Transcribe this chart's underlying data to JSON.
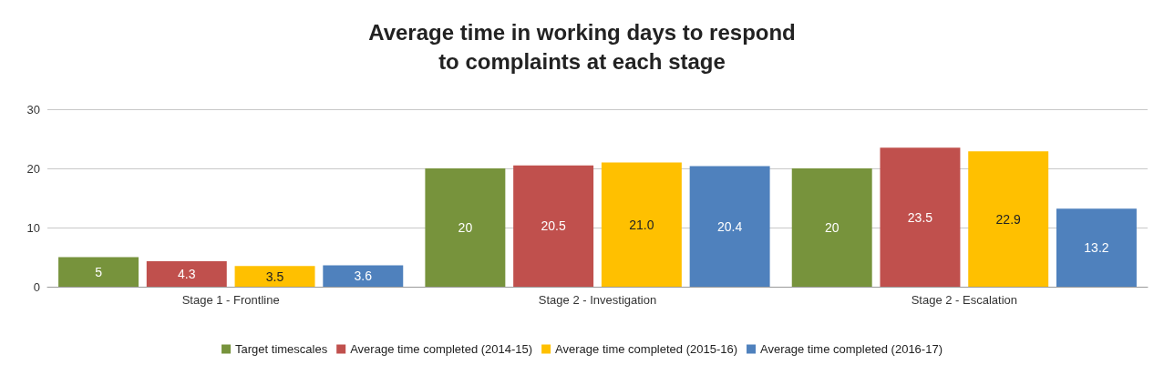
{
  "chart_data": {
    "type": "bar",
    "title": "Average time in working days to respond\nto complaints at each stage",
    "categories": [
      "Stage 1 - Frontline",
      "Stage 2 - Investigation",
      "Stage 2 - Escalation"
    ],
    "series": [
      {
        "name": "Target timescales",
        "color": "#77933c",
        "values": [
          5,
          20,
          20
        ],
        "value_labels": [
          "5",
          "20",
          "20"
        ]
      },
      {
        "name": "Average time completed (2014-15)",
        "color": "#c0504d",
        "values": [
          4.3,
          20.5,
          23.5
        ],
        "value_labels": [
          "4.3",
          "20.5",
          "23.5"
        ]
      },
      {
        "name": "Average time completed (2015-16)",
        "color": "#ffc000",
        "values": [
          3.5,
          21.0,
          22.9
        ],
        "value_labels": [
          "3.5",
          "21.0",
          "22.9"
        ]
      },
      {
        "name": "Average time completed (2016-17)",
        "color": "#4f81bd",
        "values": [
          3.6,
          20.4,
          13.2
        ],
        "value_labels": [
          "3.6",
          "20.4",
          "13.2"
        ]
      }
    ],
    "ylim": [
      0,
      30
    ],
    "yticks": [
      0,
      10,
      20,
      30
    ],
    "grid": "y",
    "legend": "bottom"
  }
}
